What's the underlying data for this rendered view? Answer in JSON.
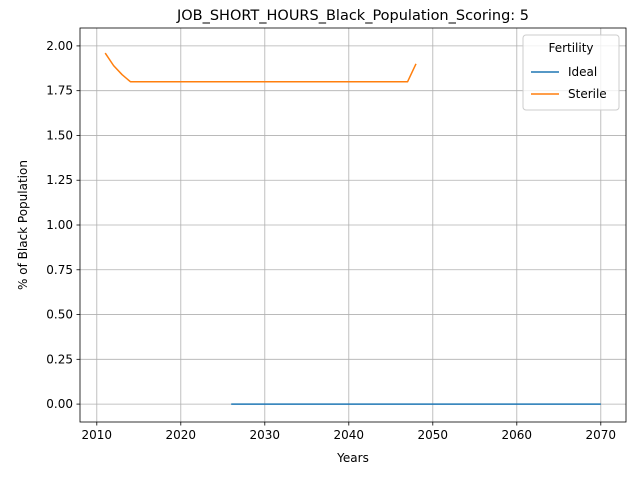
{
  "chart_data": {
    "type": "line",
    "title": "JOB_SHORT_HOURS_Black_Population_Scoring: 5",
    "xlabel": "Years",
    "ylabel": "% of Black Population",
    "xlim": [
      2008,
      2073
    ],
    "ylim": [
      -0.1,
      2.1
    ],
    "xticks": [
      2010,
      2020,
      2030,
      2040,
      2050,
      2060,
      2070
    ],
    "yticks": [
      "0.00",
      "0.25",
      "0.50",
      "0.75",
      "1.00",
      "1.25",
      "1.50",
      "1.75",
      "2.00"
    ],
    "grid": true,
    "legend": {
      "title": "Fertility",
      "placement": "top-right"
    },
    "series": [
      {
        "name": "Ideal",
        "color": "#1f77b4",
        "x": [
          2026,
          2030,
          2035,
          2040,
          2045,
          2050,
          2055,
          2060,
          2065,
          2070
        ],
        "y": [
          0,
          0,
          0,
          0,
          0,
          0,
          0,
          0,
          0,
          0
        ]
      },
      {
        "name": "Sterile",
        "color": "#ff7f0e",
        "x": [
          2011,
          2012,
          2013,
          2014,
          2015,
          2020,
          2025,
          2030,
          2035,
          2040,
          2045,
          2047,
          2048
        ],
        "y": [
          1.96,
          1.89,
          1.84,
          1.8,
          1.8,
          1.8,
          1.8,
          1.8,
          1.8,
          1.8,
          1.8,
          1.8,
          1.9
        ]
      }
    ]
  }
}
